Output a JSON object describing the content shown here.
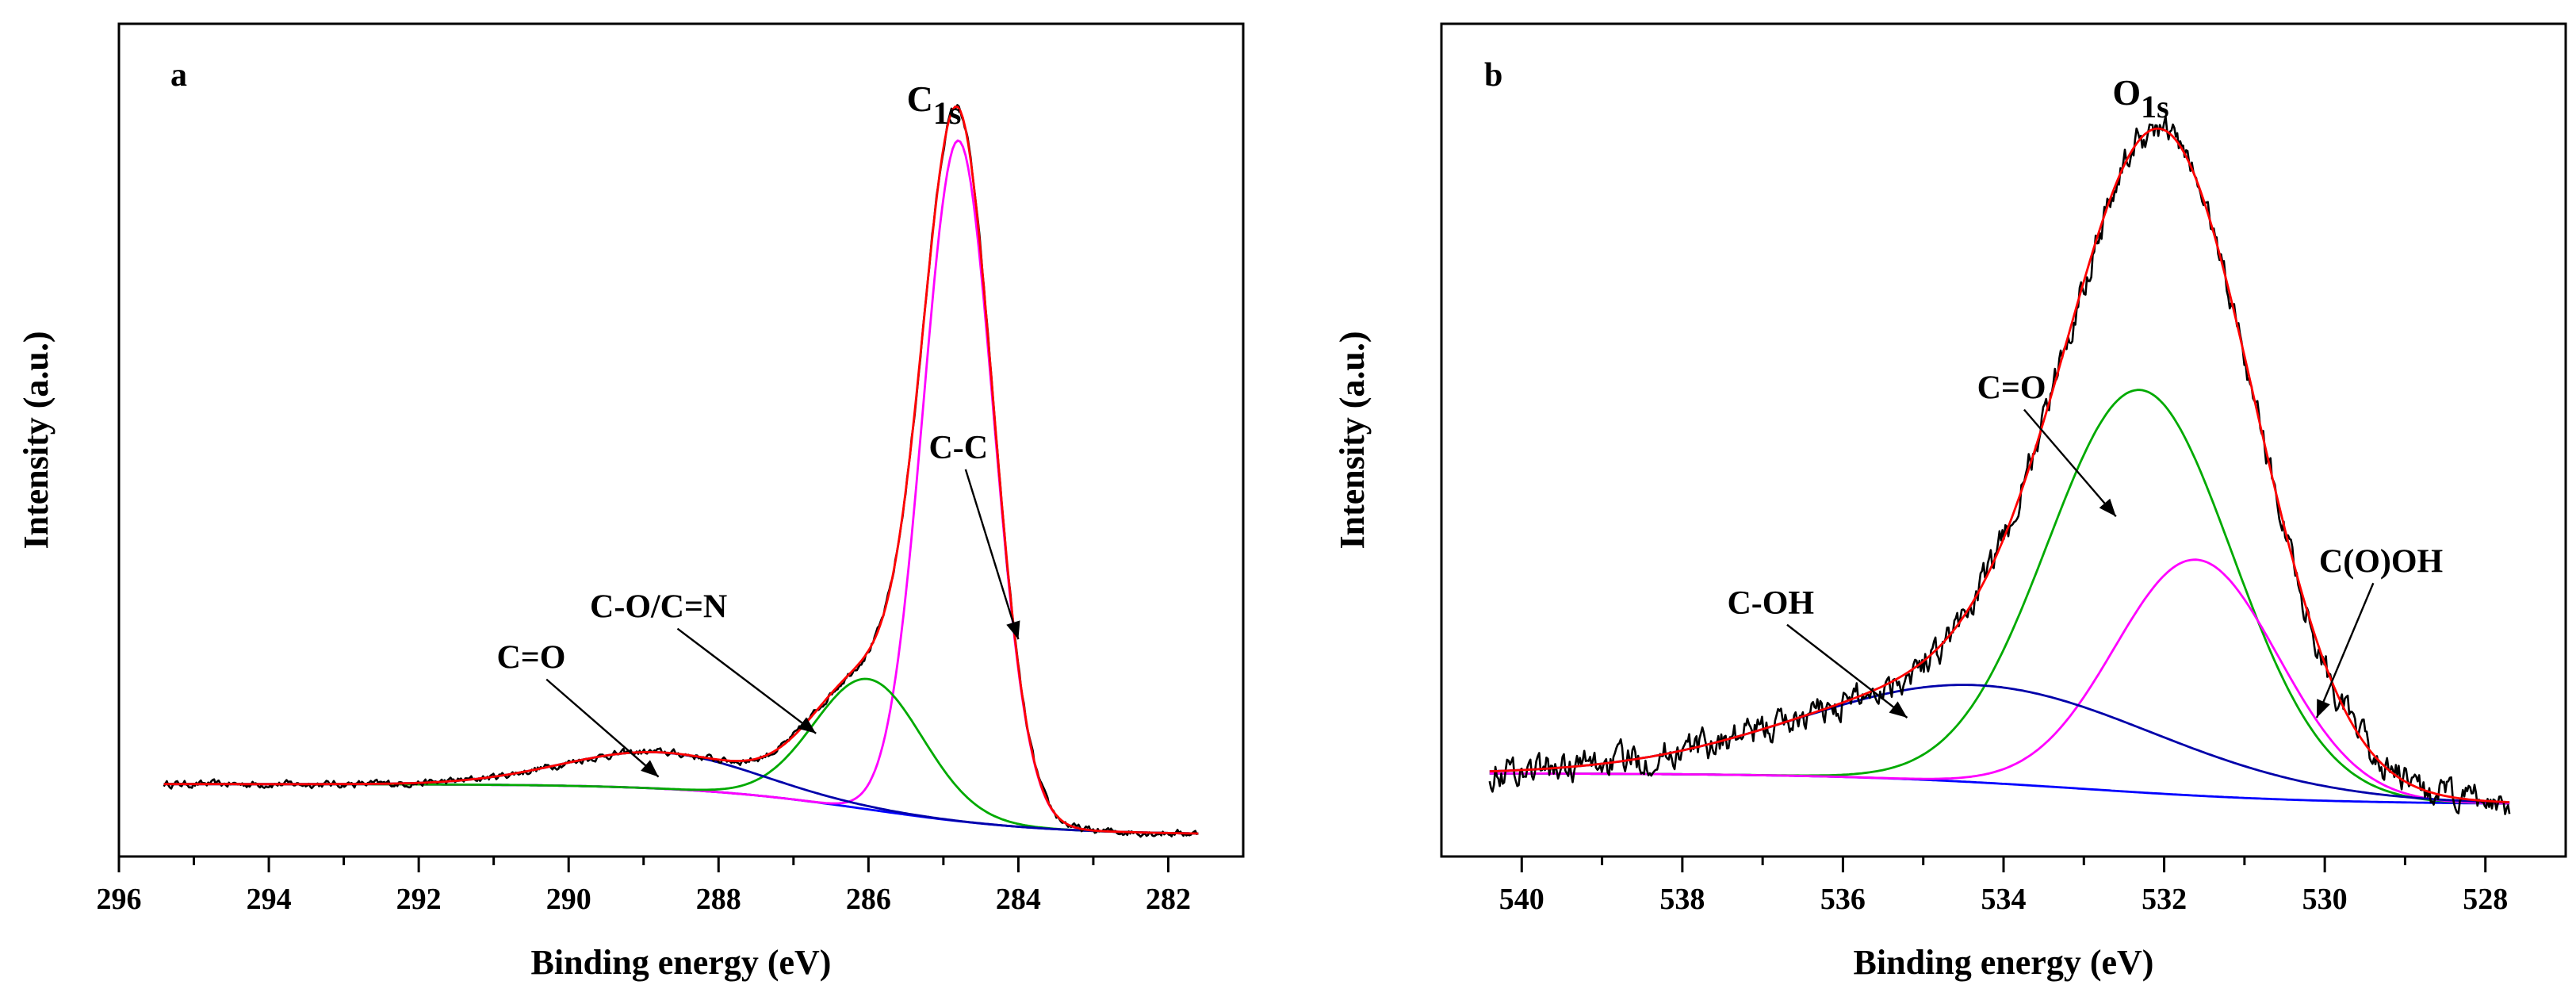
{
  "chart_data": [
    {
      "type": "line",
      "panel_label": "a",
      "title": "C",
      "title_subscript": "1s",
      "xlabel": "Binding energy (eV)",
      "ylabel": "Intensity (a.u.)",
      "xlim": [
        296,
        281
      ],
      "ylim": [
        -0.1,
        1.05
      ],
      "xticks": [
        296,
        294,
        292,
        290,
        288,
        286,
        284,
        282
      ],
      "x_reversed": true,
      "y_ticks_labeled": false,
      "series": [
        {
          "name": "raw",
          "color": "#000000",
          "kind": "raw",
          "x_range": [
            295.4,
            281.6
          ],
          "noise": 0.004
        },
        {
          "name": "envelope",
          "color": "#ff0000",
          "kind": "envelope",
          "x_range": [
            295.4,
            281.6
          ]
        },
        {
          "name": "background",
          "color": "#0000ff",
          "kind": "background",
          "x_range": [
            295.4,
            281.6
          ],
          "y_start": 0.0,
          "y_end": -0.07,
          "step_center": 286.0,
          "step_width": 1.2
        },
        {
          "name": "C-C",
          "color": "#ff00ff",
          "kind": "peak",
          "center": 284.8,
          "fwhm": 1.1,
          "height": 0.94,
          "x_range": [
            295.4,
            281.6
          ]
        },
        {
          "name": "C-O/C=N",
          "color": "#00aa00",
          "kind": "peak",
          "center": 286.0,
          "fwhm": 1.7,
          "height": 0.18,
          "x_range": [
            295.4,
            281.6
          ]
        },
        {
          "name": "C=O",
          "color": "#0000aa",
          "kind": "peak",
          "center": 288.8,
          "fwhm": 3.0,
          "height": 0.05,
          "x_range": [
            295.4,
            281.6
          ]
        }
      ],
      "annotations": [
        {
          "text": "C-C",
          "x": 284.8,
          "y": 0.45,
          "arrow_to": [
            284.0,
            0.2
          ]
        },
        {
          "text": "C-O/C=N",
          "x": 288.8,
          "y": 0.23,
          "arrow_to": [
            286.7,
            0.07
          ]
        },
        {
          "text": "C=O",
          "x": 290.5,
          "y": 0.16,
          "arrow_to": [
            288.8,
            0.01
          ]
        }
      ]
    },
    {
      "type": "line",
      "panel_label": "b",
      "title": "O",
      "title_subscript": "1s",
      "xlabel": "Binding energy (eV)",
      "ylabel": "Intensity (a.u.)",
      "xlim": [
        541,
        527
      ],
      "ylim": [
        -0.12,
        1.08
      ],
      "xticks": [
        540,
        538,
        536,
        534,
        532,
        530,
        528
      ],
      "x_reversed": true,
      "y_ticks_labeled": false,
      "series": [
        {
          "name": "raw",
          "color": "#000000",
          "kind": "raw",
          "x_range": [
            540.4,
            527.7
          ],
          "noise": 0.018
        },
        {
          "name": "envelope",
          "color": "#ff0000",
          "kind": "envelope",
          "x_range": [
            540.4,
            527.7
          ]
        },
        {
          "name": "background",
          "color": "#0000ff",
          "kind": "background",
          "x_range": [
            540.4,
            527.7
          ],
          "y_start": 0.0,
          "y_end": -0.045,
          "step_center": 533.0,
          "step_width": 1.5
        },
        {
          "name": "C=O",
          "color": "#00aa00",
          "kind": "peak",
          "center": 532.3,
          "fwhm": 2.7,
          "height": 0.58,
          "x_range": [
            540.4,
            527.7
          ]
        },
        {
          "name": "C(O)OH",
          "color": "#ff00ff",
          "kind": "peak",
          "center": 531.6,
          "fwhm": 2.4,
          "height": 0.34,
          "x_range": [
            540.4,
            527.7
          ]
        },
        {
          "name": "C-OH",
          "color": "#0000aa",
          "kind": "peak",
          "center": 534.3,
          "fwhm": 5.2,
          "height": 0.14,
          "x_range": [
            540.4,
            527.7
          ]
        }
      ],
      "annotations": [
        {
          "text": "C=O",
          "x": 533.9,
          "y": 0.54,
          "arrow_to": [
            532.6,
            0.37
          ]
        },
        {
          "text": "C-OH",
          "x": 536.9,
          "y": 0.23,
          "arrow_to": [
            535.2,
            0.08
          ]
        },
        {
          "text": "C(O)OH",
          "x": 529.3,
          "y": 0.29,
          "arrow_to": [
            530.1,
            0.08
          ]
        }
      ]
    }
  ]
}
